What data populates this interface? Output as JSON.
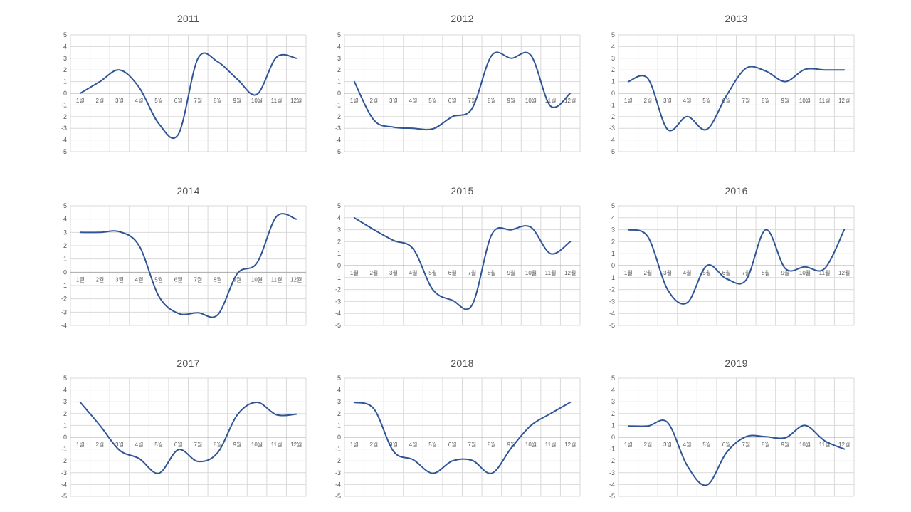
{
  "colors": {
    "series_line": "#2F5597",
    "gridline": "#D9D9D9",
    "zero_axis": "#A9A9A9",
    "axis_label": "#595959",
    "title": "#4d4d4d",
    "background": "#ffffff"
  },
  "chart_data": {
    "type": "line",
    "legend_position": "none",
    "grid": true,
    "smooth": true,
    "x_label_position": "next-to-zero-axis",
    "categories": [
      "1월",
      "2월",
      "3월",
      "4월",
      "5월",
      "6월",
      "7월",
      "8월",
      "9월",
      "10월",
      "11월",
      "12월"
    ],
    "charts": [
      {
        "title": "2011",
        "ylim": [
          -5,
          5
        ],
        "values": [
          0,
          1,
          2,
          0.5,
          -2.6,
          -3.5,
          3.0,
          2.7,
          1.2,
          -0.1,
          3.1,
          3.0
        ]
      },
      {
        "title": "2012",
        "ylim": [
          -5,
          5
        ],
        "values": [
          1,
          -2.3,
          -2.9,
          -3.0,
          -3.05,
          -2.0,
          -1.3,
          3.25,
          3.0,
          3.25,
          -1.1,
          0
        ]
      },
      {
        "title": "2013",
        "ylim": [
          -5,
          5
        ],
        "values": [
          1,
          1.25,
          -3.1,
          -2.0,
          -3.1,
          -0.2,
          2.15,
          1.9,
          1.0,
          2.05,
          2.0,
          2.0
        ]
      },
      {
        "title": "2014",
        "ylim": [
          -4,
          5
        ],
        "values": [
          3,
          3,
          3.05,
          2.0,
          -1.8,
          -3.1,
          -3.05,
          -3.2,
          -0.1,
          0.7,
          4.2,
          4.0
        ]
      },
      {
        "title": "2015",
        "ylim": [
          -5,
          5
        ],
        "values": [
          4,
          3,
          2.1,
          1.4,
          -2.0,
          -2.9,
          -3.3,
          2.6,
          3.0,
          3.2,
          1.0,
          2.0
        ]
      },
      {
        "title": "2016",
        "ylim": [
          -5,
          5
        ],
        "values": [
          3,
          2.4,
          -2.0,
          -3.1,
          0.0,
          -1.1,
          -1.2,
          3.0,
          -0.25,
          -0.1,
          -0.25,
          3.0
        ]
      },
      {
        "title": "2017",
        "ylim": [
          -5,
          5
        ],
        "values": [
          2.95,
          1.0,
          -1.1,
          -1.8,
          -3.05,
          -1.05,
          -2.05,
          -1.3,
          1.9,
          2.95,
          1.9,
          1.95
        ]
      },
      {
        "title": "2018",
        "ylim": [
          -5,
          5
        ],
        "values": [
          2.95,
          2.4,
          -1.2,
          -1.9,
          -3.05,
          -2.0,
          -1.95,
          -3.05,
          -0.9,
          1.0,
          2.0,
          2.95
        ]
      },
      {
        "title": "2019",
        "ylim": [
          -5,
          5
        ],
        "values": [
          0.95,
          0.95,
          1.25,
          -2.4,
          -4.05,
          -1.3,
          0.05,
          0.05,
          -0.05,
          1.0,
          -0.3,
          -1.0
        ]
      }
    ]
  }
}
